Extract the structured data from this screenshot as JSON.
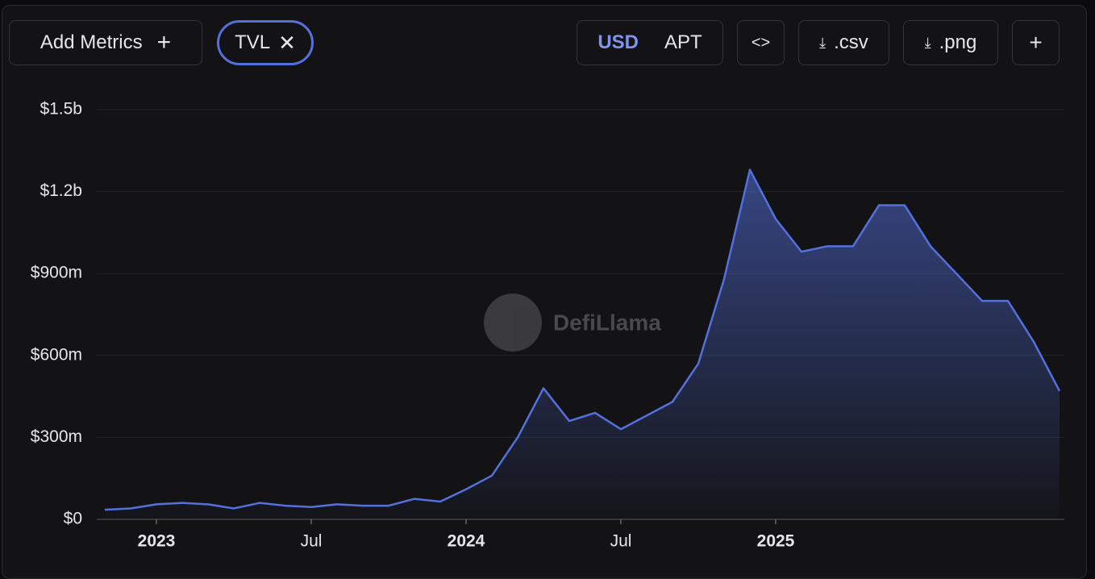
{
  "toolbar": {
    "add_metrics": "Add Metrics",
    "metric_chip": "TVL",
    "currencies": [
      "USD",
      "APT"
    ],
    "csv": ".csv",
    "png": ".png"
  },
  "watermark": "DefiLlama",
  "chart_data": {
    "type": "area",
    "color": "#5470dd",
    "series": [
      {
        "name": "TVL",
        "color": "#5470dd",
        "values": [
          35,
          40,
          55,
          60,
          55,
          40,
          60,
          50,
          45,
          55,
          50,
          50,
          75,
          65,
          110,
          160,
          300,
          480,
          360,
          390,
          330,
          380,
          430,
          570,
          880,
          1280,
          1100,
          980,
          1000,
          1000,
          1150,
          1150,
          1000,
          900,
          800,
          800,
          650,
          470
        ]
      }
    ],
    "x": [
      "2022-11",
      "2022-12",
      "2023-01",
      "2023-02",
      "2023-03",
      "2023-04",
      "2023-05",
      "2023-06",
      "2023-07",
      "2023-08",
      "2023-09",
      "2023-10",
      "2023-11",
      "2023-12",
      "2024-01",
      "2024-02",
      "2024-03",
      "2024-04",
      "2024-05",
      "2024-06",
      "2024-07",
      "2024-08",
      "2024-09",
      "2024-10",
      "2024-11",
      "2024-12",
      "2025-01",
      "2025-02",
      "2025-03",
      "2025-04",
      "2025-05",
      "2025-06",
      "2025-07",
      "2025-08",
      "2025-09",
      "2025-10",
      "2025-11",
      "2025-12"
    ],
    "xticks": [
      {
        "value": "2023-01",
        "label": "2023"
      },
      {
        "value": "2023-07",
        "label": "Jul"
      },
      {
        "value": "2024-01",
        "label": "2024"
      },
      {
        "value": "2024-07",
        "label": "Jul"
      },
      {
        "value": "2025-01",
        "label": "2025"
      }
    ],
    "ylim": [
      0,
      1500
    ],
    "yticks": [
      {
        "value": 0,
        "label": "$0"
      },
      {
        "value": 300,
        "label": "$300m"
      },
      {
        "value": 600,
        "label": "$600m"
      },
      {
        "value": 900,
        "label": "$900m"
      },
      {
        "value": 1200,
        "label": "$1.2b"
      },
      {
        "value": 1500,
        "label": "$1.5b"
      }
    ],
    "grid": true
  }
}
